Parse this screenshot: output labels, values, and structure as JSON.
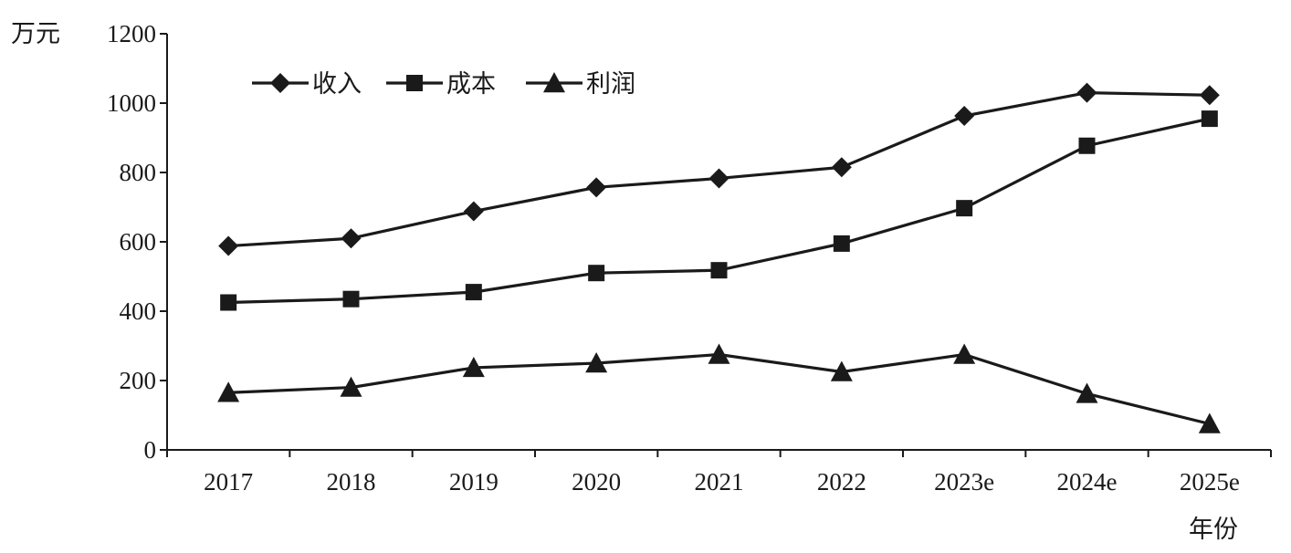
{
  "chart_data": {
    "type": "line",
    "ylabel": "万元",
    "xlabel": "年份",
    "ylim": [
      0,
      1200
    ],
    "yticks": [
      0,
      200,
      400,
      600,
      800,
      1000,
      1200
    ],
    "categories": [
      "2017",
      "2018",
      "2019",
      "2020",
      "2021",
      "2022",
      "2023e",
      "2024e",
      "2025e"
    ],
    "legend_position": "top-left",
    "grid": false,
    "series": [
      {
        "name": "收入",
        "marker": "diamond",
        "values": [
          588,
          610,
          688,
          757,
          783,
          815,
          963,
          1030,
          1023
        ]
      },
      {
        "name": "成本",
        "marker": "square",
        "values": [
          425,
          435,
          455,
          510,
          518,
          595,
          697,
          877,
          955
        ]
      },
      {
        "name": "利润",
        "marker": "triangle",
        "values": [
          165,
          180,
          237,
          250,
          275,
          225,
          275,
          162,
          75
        ]
      }
    ]
  }
}
